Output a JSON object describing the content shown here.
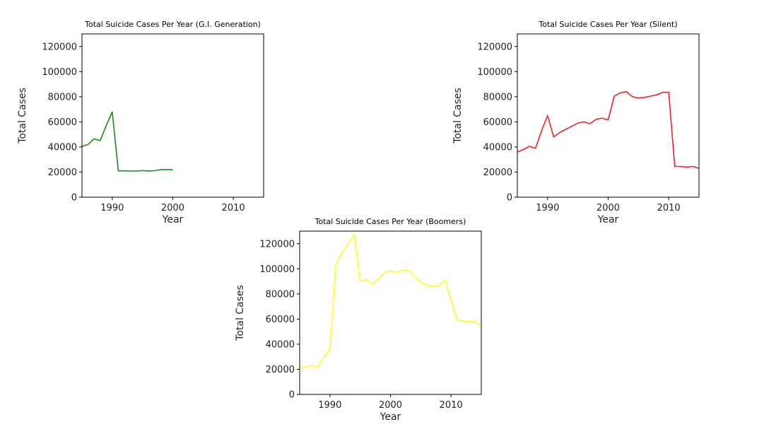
{
  "chart_data": [
    {
      "type": "line",
      "title": "Total Suicide Cases Per Year (G.I. Generation)",
      "xlabel": "Year",
      "ylabel": "Total Cases",
      "xlim": [
        1985,
        2015
      ],
      "ylim": [
        0,
        130000
      ],
      "xticks": [
        1990,
        2000,
        2010
      ],
      "yticks": [
        0,
        20000,
        40000,
        60000,
        80000,
        100000,
        120000
      ],
      "grid": false,
      "color": "#1a8c1a",
      "series": [
        {
          "x": [
            1985,
            1986,
            1987,
            1988,
            1989,
            1990,
            1991,
            1992,
            1993,
            1994,
            1995,
            1996,
            1997,
            1998,
            1999,
            2000
          ],
          "values": [
            40500,
            42000,
            46500,
            45000,
            57000,
            68000,
            21000,
            21000,
            20800,
            20800,
            21200,
            20900,
            21100,
            22000,
            22000,
            21900
          ]
        }
      ]
    },
    {
      "type": "line",
      "title": "Total Suicide Cases Per Year (Silent)",
      "xlabel": "Year",
      "ylabel": "Total Cases",
      "xlim": [
        1985,
        2015
      ],
      "ylim": [
        0,
        130000
      ],
      "xticks": [
        1990,
        2000,
        2010
      ],
      "yticks": [
        0,
        20000,
        40000,
        60000,
        80000,
        100000,
        120000
      ],
      "grid": false,
      "color": "#ff2020",
      "series": [
        {
          "x": [
            1985,
            1986,
            1987,
            1988,
            1989,
            1990,
            1991,
            1992,
            1993,
            1994,
            1995,
            1996,
            1997,
            1998,
            1999,
            2000,
            2001,
            2002,
            2003,
            2004,
            2005,
            2006,
            2007,
            2008,
            2009,
            2010,
            2011,
            2012,
            2013,
            2014,
            2015
          ],
          "values": [
            36000,
            38000,
            40500,
            39000,
            53000,
            65000,
            48000,
            51500,
            54000,
            56500,
            59000,
            60000,
            58500,
            62000,
            63000,
            61500,
            80500,
            83000,
            84000,
            80000,
            79000,
            79500,
            80500,
            81500,
            83500,
            83500,
            24500,
            24500,
            24000,
            24500,
            23000
          ]
        }
      ]
    },
    {
      "type": "line",
      "title": "Total Suicide Cases Per Year (Boomers)",
      "xlabel": "Year",
      "ylabel": "Total Cases",
      "xlim": [
        1985,
        2015
      ],
      "ylim": [
        0,
        130000
      ],
      "xticks": [
        1990,
        2000,
        2010
      ],
      "yticks": [
        0,
        20000,
        40000,
        60000,
        80000,
        100000,
        120000
      ],
      "grid": false,
      "color": "#ffff1a",
      "series": [
        {
          "x": [
            1985,
            1986,
            1987,
            1988,
            1989,
            1990,
            1991,
            1992,
            1993,
            1994,
            1995,
            1996,
            1997,
            1998,
            1999,
            2000,
            2001,
            2002,
            2003,
            2004,
            2005,
            2006,
            2007,
            2008,
            2009,
            2010,
            2011,
            2012,
            2013,
            2014,
            2015
          ],
          "values": [
            21000,
            22000,
            23000,
            22000,
            30000,
            36000,
            104000,
            113000,
            120000,
            127000,
            90000,
            91500,
            88000,
            92000,
            97000,
            98500,
            97000,
            99000,
            99000,
            94000,
            89000,
            87000,
            86000,
            87000,
            91000,
            75000,
            59500,
            58500,
            58000,
            58000,
            54000
          ]
        }
      ]
    }
  ]
}
